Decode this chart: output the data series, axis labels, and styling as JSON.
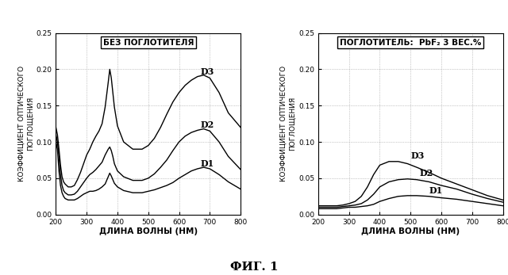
{
  "title_left": "БЕЗ ПОГЛОТИТЕЛЯ",
  "title_right": "ПОГЛОТИТЕЛЬ:  PbF₂ 3 ВЕС.%",
  "ylabel": "КОЭФФИЦИЕНТ ОПТИЧЕСКОГО\nПОГЛОЩЕНИЯ",
  "xlabel": "ДЛИНА ВОЛНЫ (НМ)",
  "fig_label": "ФИГ. 1",
  "xlim": [
    200,
    800
  ],
  "ylim": [
    0,
    0.25
  ],
  "yticks": [
    0,
    0.05,
    0.1,
    0.15,
    0.2,
    0.25
  ],
  "xticks": [
    200,
    300,
    400,
    500,
    600,
    700,
    800
  ],
  "line_color": "black",
  "curves_left": {
    "D1": {
      "x": [
        200,
        205,
        210,
        215,
        220,
        225,
        230,
        240,
        250,
        260,
        270,
        280,
        290,
        300,
        310,
        320,
        330,
        340,
        350,
        360,
        370,
        375,
        380,
        385,
        390,
        400,
        420,
        450,
        480,
        500,
        520,
        540,
        560,
        580,
        600,
        620,
        640,
        660,
        680,
        700,
        730,
        760,
        800
      ],
      "y": [
        0.1,
        0.09,
        0.06,
        0.04,
        0.03,
        0.025,
        0.022,
        0.02,
        0.02,
        0.02,
        0.022,
        0.025,
        0.028,
        0.03,
        0.032,
        0.032,
        0.033,
        0.035,
        0.038,
        0.042,
        0.052,
        0.057,
        0.053,
        0.048,
        0.043,
        0.038,
        0.033,
        0.03,
        0.03,
        0.032,
        0.034,
        0.037,
        0.04,
        0.044,
        0.05,
        0.055,
        0.06,
        0.063,
        0.065,
        0.063,
        0.055,
        0.045,
        0.035
      ]
    },
    "D2": {
      "x": [
        200,
        205,
        210,
        215,
        220,
        225,
        230,
        240,
        250,
        260,
        270,
        280,
        290,
        300,
        310,
        320,
        330,
        340,
        350,
        360,
        370,
        375,
        380,
        385,
        390,
        400,
        420,
        450,
        480,
        500,
        520,
        540,
        560,
        580,
        600,
        620,
        640,
        660,
        680,
        700,
        730,
        760,
        800
      ],
      "y": [
        0.11,
        0.1,
        0.08,
        0.055,
        0.04,
        0.033,
        0.03,
        0.027,
        0.027,
        0.028,
        0.032,
        0.038,
        0.044,
        0.05,
        0.055,
        0.058,
        0.062,
        0.067,
        0.072,
        0.082,
        0.09,
        0.093,
        0.088,
        0.08,
        0.07,
        0.06,
        0.052,
        0.047,
        0.047,
        0.05,
        0.056,
        0.065,
        0.075,
        0.088,
        0.1,
        0.108,
        0.113,
        0.116,
        0.118,
        0.115,
        0.1,
        0.08,
        0.062
      ]
    },
    "D3": {
      "x": [
        200,
        205,
        210,
        215,
        220,
        225,
        230,
        240,
        250,
        260,
        270,
        280,
        290,
        300,
        310,
        320,
        330,
        340,
        350,
        360,
        370,
        375,
        380,
        385,
        390,
        400,
        420,
        450,
        480,
        500,
        520,
        540,
        560,
        580,
        600,
        620,
        640,
        660,
        680,
        700,
        730,
        760,
        800
      ],
      "y": [
        0.12,
        0.11,
        0.09,
        0.068,
        0.052,
        0.045,
        0.042,
        0.038,
        0.038,
        0.04,
        0.048,
        0.058,
        0.07,
        0.082,
        0.09,
        0.1,
        0.108,
        0.115,
        0.125,
        0.148,
        0.182,
        0.2,
        0.188,
        0.168,
        0.148,
        0.122,
        0.1,
        0.09,
        0.09,
        0.095,
        0.105,
        0.12,
        0.138,
        0.155,
        0.168,
        0.178,
        0.185,
        0.19,
        0.192,
        0.188,
        0.168,
        0.14,
        0.12
      ]
    }
  },
  "curves_right": {
    "D1": {
      "x": [
        200,
        220,
        240,
        260,
        280,
        300,
        320,
        340,
        360,
        380,
        400,
        430,
        460,
        490,
        520,
        560,
        600,
        650,
        700,
        750,
        800
      ],
      "y": [
        0.008,
        0.008,
        0.008,
        0.008,
        0.009,
        0.01,
        0.01,
        0.011,
        0.012,
        0.014,
        0.018,
        0.022,
        0.025,
        0.026,
        0.026,
        0.025,
        0.023,
        0.021,
        0.018,
        0.015,
        0.012
      ]
    },
    "D2": {
      "x": [
        200,
        220,
        240,
        260,
        280,
        300,
        320,
        340,
        360,
        380,
        400,
        430,
        460,
        490,
        520,
        560,
        600,
        650,
        700,
        750,
        800
      ],
      "y": [
        0.01,
        0.01,
        0.01,
        0.01,
        0.011,
        0.012,
        0.013,
        0.015,
        0.02,
        0.028,
        0.038,
        0.045,
        0.048,
        0.049,
        0.048,
        0.045,
        0.04,
        0.035,
        0.028,
        0.022,
        0.017
      ]
    },
    "D3": {
      "x": [
        200,
        220,
        240,
        260,
        280,
        300,
        320,
        340,
        360,
        380,
        400,
        430,
        460,
        490,
        520,
        560,
        600,
        650,
        700,
        750,
        800
      ],
      "y": [
        0.012,
        0.012,
        0.012,
        0.012,
        0.013,
        0.015,
        0.018,
        0.025,
        0.038,
        0.055,
        0.068,
        0.073,
        0.073,
        0.07,
        0.065,
        0.058,
        0.05,
        0.042,
        0.034,
        0.026,
        0.02
      ]
    }
  },
  "label_positions_left": {
    "D3": [
      670,
      0.193
    ],
    "D2": [
      670,
      0.12
    ],
    "D1": [
      670,
      0.066
    ]
  },
  "label_positions_right": {
    "D3": [
      500,
      0.077
    ],
    "D2": [
      530,
      0.053
    ],
    "D1": [
      560,
      0.029
    ]
  }
}
